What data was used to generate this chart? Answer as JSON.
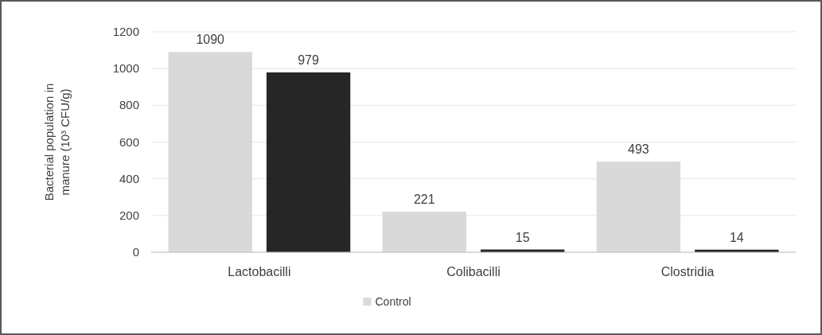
{
  "chart_data": {
    "type": "bar",
    "ylabel": "Bacterial population in manure (10³ CFU/g)",
    "categories": [
      "Lactobacilli",
      "Colibacilli",
      "Clostridia"
    ],
    "series": [
      {
        "name": "Control",
        "color": "#d9d9d9",
        "values": [
          1090,
          221,
          493
        ]
      },
      {
        "color": "#262626",
        "values": [
          979,
          15,
          14
        ]
      }
    ],
    "ylim": [
      0,
      1200
    ],
    "yticks": [
      0,
      200,
      400,
      600,
      800,
      1000,
      1200
    ],
    "grid": "y",
    "legend": "bottom",
    "data_labels": true
  }
}
